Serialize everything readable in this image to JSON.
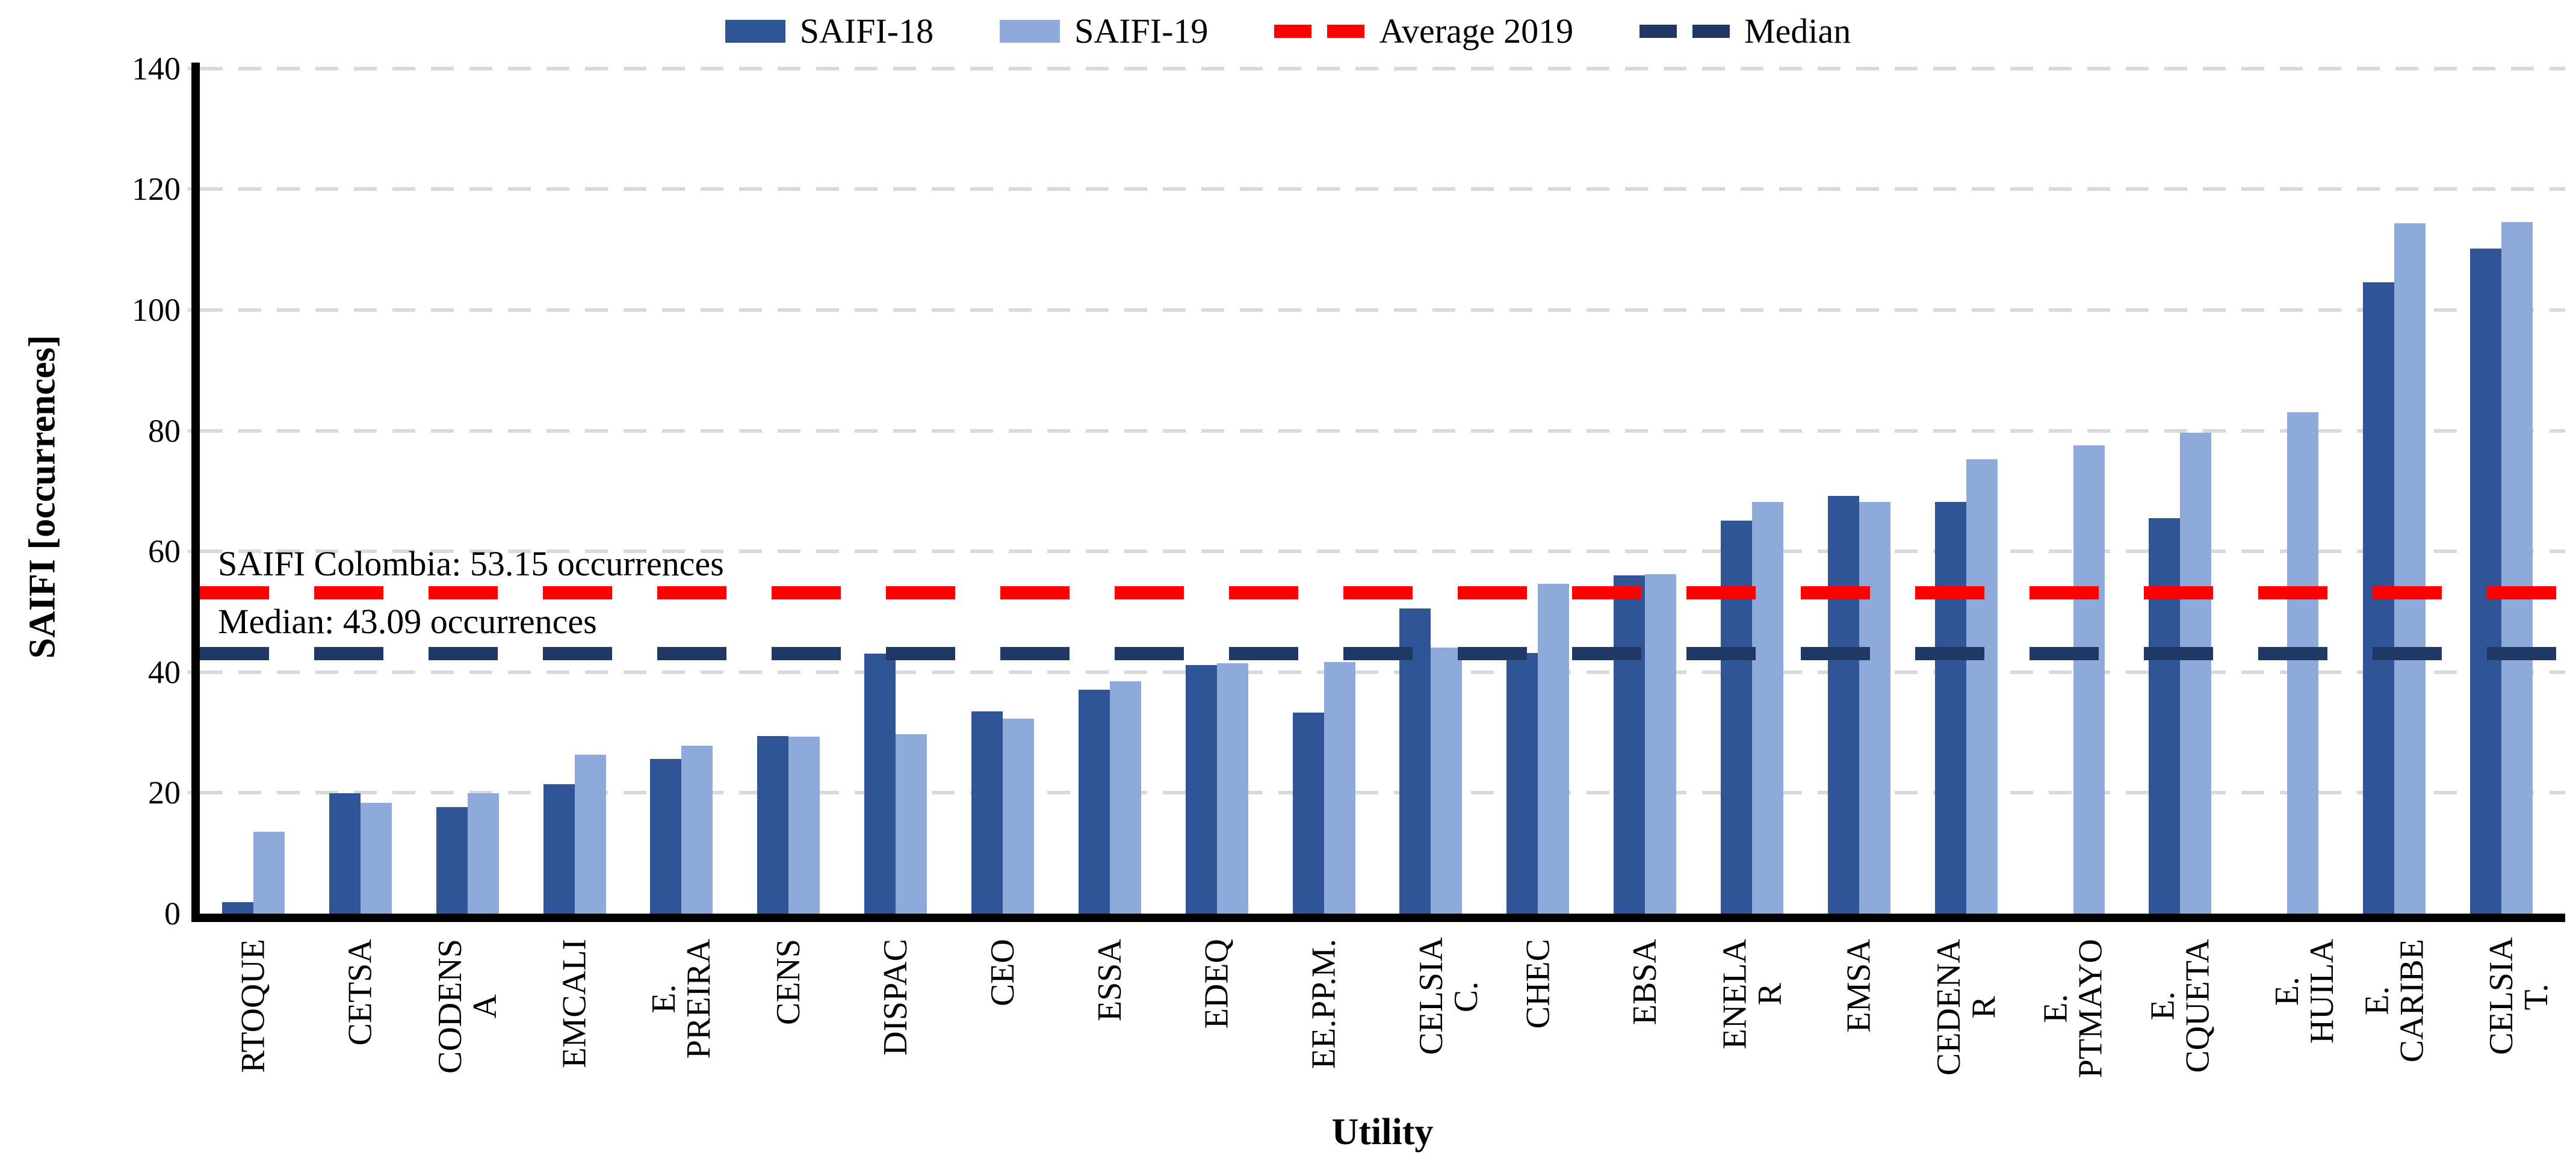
{
  "legend": {
    "items": [
      {
        "label": "SAIFI-18",
        "marker": "rect",
        "color": "#2F5597"
      },
      {
        "label": "SAIFI-19",
        "marker": "rect",
        "color": "#8EAADB"
      },
      {
        "label": "Average 2019",
        "marker": "dashed-line",
        "color": "#FF0000"
      },
      {
        "label": "Median",
        "marker": "dashed-line",
        "color": "#1F3864"
      }
    ]
  },
  "annotations": {
    "average": "SAIFI Colombia: 53.15 occurrences",
    "median": "Median: 43.09 occurrences"
  },
  "axes": {
    "x_title": "Utility",
    "y_title": "SAIFI [occurrences]"
  },
  "chart_data": {
    "type": "bar",
    "title": "",
    "xlabel": "Utility",
    "ylabel": "SAIFI [occurrences]",
    "ylim": [
      0,
      140
    ],
    "yticks": [
      0,
      20,
      40,
      60,
      80,
      100,
      120,
      140
    ],
    "grid": true,
    "legend_position": "top",
    "categories": [
      "RTOQUE",
      "CETSA",
      "CODENSA",
      "EMCALI",
      "E. PREIRA",
      "CENS",
      "DISPAC",
      "CEO",
      "ESSA",
      "EDEQ",
      "EE.PP.M.",
      "CELSIA C.",
      "CHEC",
      "EBSA",
      "ENELAR",
      "EMSA",
      "CEDENAR",
      "E. PTMAYO",
      "E. CQUETA",
      "E. HUILA",
      "E. CARIBE",
      "CELSIA T."
    ],
    "category_label_lines": [
      [
        "RTOQUE"
      ],
      [
        "CETSA"
      ],
      [
        "CODENS",
        "A"
      ],
      [
        "EMCALI"
      ],
      [
        "E.",
        "PREIRA"
      ],
      [
        "CENS"
      ],
      [
        "DISPAC"
      ],
      [
        "CEO"
      ],
      [
        "ESSA"
      ],
      [
        "EDEQ"
      ],
      [
        "EE.PP.M."
      ],
      [
        "CELSIA C."
      ],
      [
        "CHEC"
      ],
      [
        "EBSA"
      ],
      [
        "ENELA",
        "R"
      ],
      [
        "EMSA"
      ],
      [
        "CEDENA",
        "R"
      ],
      [
        "E.",
        "PTMAYO"
      ],
      [
        "E.",
        "CQUETA"
      ],
      [
        "E. HUILA"
      ],
      [
        "E.",
        "CARIBE"
      ],
      [
        "CELSIA T."
      ]
    ],
    "series": [
      {
        "name": "SAIFI-18",
        "color": "#2F5597",
        "values": [
          1.9,
          19.9,
          17.6,
          21.4,
          25.6,
          29.4,
          43.1,
          33.5,
          37.1,
          41.2,
          33.3,
          50.5,
          43.2,
          56.0,
          65.1,
          69.2,
          68.2,
          null,
          65.5,
          null,
          104.6,
          110.2
        ]
      },
      {
        "name": "SAIFI-19",
        "color": "#8EAADB",
        "values": [
          13.6,
          18.3,
          19.9,
          26.3,
          27.8,
          29.3,
          29.7,
          32.3,
          38.5,
          41.5,
          41.7,
          44.1,
          54.6,
          56.2,
          68.2,
          68.2,
          75.3,
          77.6,
          79.7,
          83.1,
          114.4,
          114.6
        ]
      }
    ],
    "reference_lines": [
      {
        "name": "Average 2019",
        "value": 53.15,
        "color": "#FF0000",
        "style": "dashed",
        "annotation": "SAIFI Colombia: 53.15 occurrences"
      },
      {
        "name": "Median",
        "value": 43.09,
        "color": "#1F3864",
        "style": "dashed",
        "annotation": "Median: 43.09 occurrences"
      }
    ],
    "colors": {
      "saifi18": "#2F5597",
      "saifi19": "#8EAADB",
      "average_line": "#FF0000",
      "median_line": "#1F3864",
      "gridline": "#D9D9D9",
      "axis": "#000000"
    }
  }
}
